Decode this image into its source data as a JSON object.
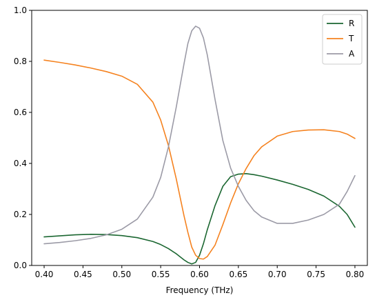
{
  "chart_data": {
    "type": "line",
    "title": "",
    "xlabel": "Frequency (THz)",
    "ylabel": "",
    "xlim": [
      0.384,
      0.816
    ],
    "ylim": [
      0,
      1.0
    ],
    "xticks": [
      "0.40",
      "0.45",
      "0.50",
      "0.55",
      "0.60",
      "0.65",
      "0.70",
      "0.75",
      "0.80"
    ],
    "yticks": [
      "0.0",
      "0.2",
      "0.4",
      "0.6",
      "0.8",
      "1.0"
    ],
    "grid": false,
    "legend_position": "top-right",
    "x": [
      0.4,
      0.42,
      0.44,
      0.46,
      0.48,
      0.5,
      0.52,
      0.54,
      0.55,
      0.56,
      0.57,
      0.58,
      0.585,
      0.59,
      0.595,
      0.6,
      0.605,
      0.61,
      0.62,
      0.63,
      0.64,
      0.65,
      0.66,
      0.67,
      0.68,
      0.7,
      0.72,
      0.74,
      0.76,
      0.78,
      0.79,
      0.8
    ],
    "series": [
      {
        "name": "R",
        "color": "#1a6630",
        "values": [
          0.112,
          0.116,
          0.12,
          0.122,
          0.121,
          0.117,
          0.109,
          0.094,
          0.082,
          0.066,
          0.046,
          0.022,
          0.012,
          0.006,
          0.012,
          0.04,
          0.085,
          0.14,
          0.235,
          0.31,
          0.348,
          0.358,
          0.36,
          0.356,
          0.35,
          0.335,
          0.318,
          0.298,
          0.272,
          0.232,
          0.2,
          0.15
        ]
      },
      {
        "name": "T",
        "color": "#f5821f",
        "values": [
          0.805,
          0.796,
          0.786,
          0.774,
          0.76,
          0.742,
          0.71,
          0.64,
          0.57,
          0.47,
          0.34,
          0.195,
          0.13,
          0.072,
          0.04,
          0.027,
          0.025,
          0.035,
          0.08,
          0.16,
          0.245,
          0.32,
          0.38,
          0.43,
          0.465,
          0.507,
          0.525,
          0.531,
          0.532,
          0.525,
          0.515,
          0.498
        ]
      },
      {
        "name": "A",
        "color": "#9b9aa6",
        "values": [
          0.085,
          0.09,
          0.097,
          0.106,
          0.12,
          0.142,
          0.182,
          0.268,
          0.345,
          0.465,
          0.62,
          0.79,
          0.87,
          0.92,
          0.938,
          0.93,
          0.892,
          0.825,
          0.65,
          0.49,
          0.382,
          0.31,
          0.255,
          0.215,
          0.19,
          0.165,
          0.165,
          0.178,
          0.2,
          0.24,
          0.29,
          0.352
        ]
      }
    ]
  }
}
